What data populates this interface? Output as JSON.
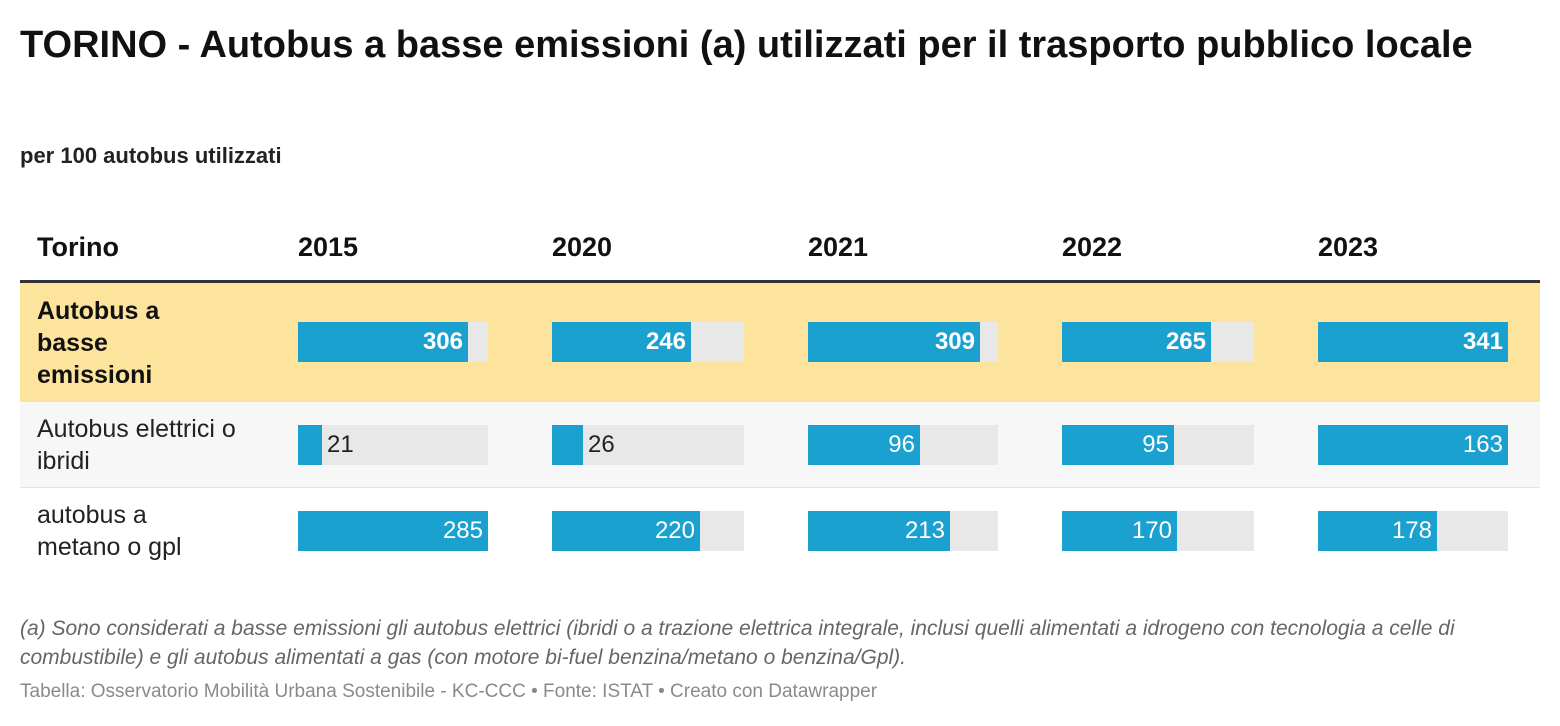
{
  "title": "TORINO - Autobus a basse emissioni (a) utilizzati per il trasporto pubblico locale",
  "subtitle": "per 100 autobus utilizzati",
  "note": "(a) Sono considerati a basse emissioni gli autobus elettrici (ibridi o a trazione elettrica integrale, inclusi quelli alimentati a idrogeno con tecnologia a celle di combustibile) e gli autobus alimentati a gas (con motore bi-fuel benzina/metano o benzina/Gpl).",
  "source": "Tabella: Osservatorio Mobilità Urbana Sostenibile - KC-CCC • Fonte: ISTAT • Creato con Datawrapper",
  "colors": {
    "bar": "#1ba1d0",
    "highlight_row": "#fde49c",
    "bar_background": "#e8e8e8"
  },
  "chart_data": {
    "type": "table",
    "header": "Torino",
    "categories": [
      "2015",
      "2020",
      "2021",
      "2022",
      "2023"
    ],
    "series": [
      {
        "name": "Autobus a basse emissioni",
        "values": [
          306,
          246,
          309,
          265,
          341
        ],
        "highlighted": true
      },
      {
        "name": "Autobus elettrici o ibridi",
        "values": [
          21,
          26,
          96,
          95,
          163
        ]
      },
      {
        "name": "autobus a metano o gpl",
        "values": [
          285,
          220,
          213,
          170,
          178
        ]
      }
    ]
  }
}
